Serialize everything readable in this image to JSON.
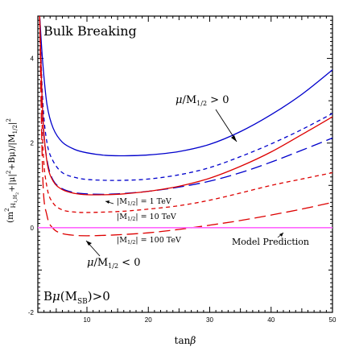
{
  "chart_data": {
    "type": "line",
    "title": "Bulk Breaking",
    "xlabel": "tanβ",
    "ylabel": "(m²H₁,H₂ + |μ|² + Bμ) / |M1/2|²",
    "xlim": [
      2,
      50
    ],
    "ylim": [
      -2,
      5
    ],
    "xticks": [
      10,
      20,
      30,
      40,
      50
    ],
    "yticks": [
      -2,
      0,
      2,
      4
    ],
    "grid": false,
    "series": [
      {
        "group": "mu_pos",
        "color": "#0000cc",
        "style": "solid",
        "x": [
          2.3,
          2.8,
          3.5,
          4.5,
          6,
          8,
          10,
          13,
          16,
          20,
          25,
          30,
          35,
          40,
          45,
          50
        ],
        "y": [
          5.0,
          3.9,
          2.9,
          2.35,
          2.02,
          1.85,
          1.77,
          1.71,
          1.7,
          1.72,
          1.8,
          1.97,
          2.27,
          2.67,
          3.15,
          3.73
        ]
      },
      {
        "group": "mu_pos",
        "color": "#0000cc",
        "style": "short-dash",
        "x": [
          2.3,
          2.8,
          3.5,
          4.5,
          6,
          8,
          10,
          13,
          16,
          20,
          25,
          30,
          35,
          40,
          45,
          50
        ],
        "y": [
          5.0,
          3.0,
          2.0,
          1.57,
          1.3,
          1.19,
          1.14,
          1.12,
          1.12,
          1.15,
          1.25,
          1.42,
          1.68,
          1.98,
          2.32,
          2.7
        ]
      },
      {
        "group": "mu_pos",
        "color": "#0000cc",
        "style": "long-dash",
        "x": [
          2.3,
          2.8,
          3.5,
          4.5,
          6,
          8,
          10,
          13,
          16,
          20,
          25,
          30,
          35,
          40,
          45,
          50
        ],
        "y": [
          5.0,
          2.6,
          1.6,
          1.12,
          0.92,
          0.83,
          0.8,
          0.79,
          0.81,
          0.86,
          0.96,
          1.1,
          1.3,
          1.55,
          1.83,
          2.12
        ]
      },
      {
        "group": "mu_neg",
        "color": "#dd0000",
        "style": "solid",
        "x": [
          2.3,
          2.8,
          3.5,
          4.5,
          6,
          8,
          10,
          13,
          16,
          20,
          25,
          30,
          35,
          40,
          45,
          50
        ],
        "y": [
          5.0,
          2.7,
          1.55,
          1.1,
          0.9,
          0.81,
          0.78,
          0.78,
          0.8,
          0.86,
          0.98,
          1.17,
          1.45,
          1.79,
          2.2,
          2.62
        ]
      },
      {
        "group": "mu_neg",
        "color": "#dd0000",
        "style": "short-dash",
        "x": [
          2.3,
          2.8,
          3.5,
          4.5,
          6,
          8,
          10,
          13,
          16,
          20,
          25,
          30,
          35,
          40,
          45,
          50
        ],
        "y": [
          5.0,
          2.0,
          0.95,
          0.58,
          0.42,
          0.37,
          0.36,
          0.37,
          0.39,
          0.44,
          0.52,
          0.65,
          0.82,
          1.0,
          1.15,
          1.3
        ]
      },
      {
        "group": "mu_neg",
        "color": "#dd0000",
        "style": "long-dash",
        "x": [
          2.3,
          2.8,
          3.5,
          4.5,
          6,
          8,
          10,
          13,
          16,
          20,
          25,
          30,
          35,
          40,
          45,
          50
        ],
        "y": [
          5.0,
          1.2,
          0.28,
          -0.02,
          -0.14,
          -0.18,
          -0.19,
          -0.18,
          -0.16,
          -0.12,
          -0.04,
          0.06,
          0.17,
          0.3,
          0.44,
          0.6
        ]
      },
      {
        "group": "model",
        "color": "#ff66ff",
        "style": "solid",
        "x": [
          2,
          50
        ],
        "y": [
          0,
          0
        ]
      }
    ],
    "annotations": {
      "title_text": "Bulk Breaking",
      "mu_pos_label": "μ/M1/2 > 0",
      "mu_neg_label": "μ/M1/2 < 0",
      "m1_label": "|M1/2| = 1 TeV",
      "m10_label": "|M1/2| = 10 TeV",
      "m100_label": "|M1/2| = 100 TeV",
      "model_label": "Model Prediction",
      "bottom_label": "Bμ(MSB)>0"
    }
  }
}
